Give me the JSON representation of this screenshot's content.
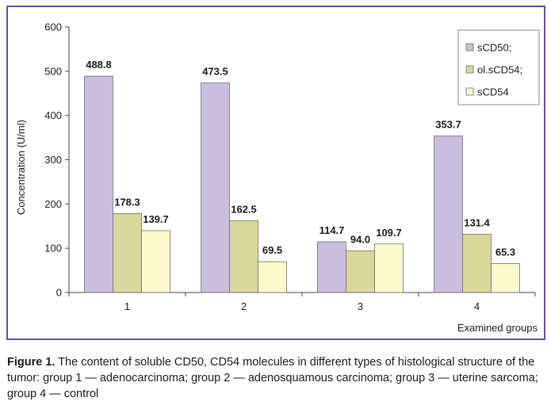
{
  "chart_data": {
    "type": "bar",
    "categories": [
      "1",
      "2",
      "3",
      "4"
    ],
    "series": [
      {
        "name": "sCD50;",
        "values": [
          488.8,
          473.5,
          114.7,
          353.7
        ],
        "color": "#c9bedd"
      },
      {
        "name": "ol.sCD54;",
        "values": [
          178.3,
          162.5,
          94.0,
          131.4
        ],
        "color": "#d9d79a"
      },
      {
        "name": "sCD54",
        "values": [
          139.7,
          69.5,
          109.7,
          65.3
        ],
        "color": "#fdf9cf"
      }
    ],
    "value_labels": [
      [
        "488.8",
        "473.5",
        "114.7",
        "353.7"
      ],
      [
        "178.3",
        "162.5",
        "94.0",
        "131.4"
      ],
      [
        "139.7",
        "69.5",
        "109.7",
        "65.3"
      ]
    ],
    "yticks": [
      "0",
      "100",
      "200",
      "300",
      "400",
      "500",
      "600"
    ],
    "ylim": [
      0,
      600
    ],
    "xlabel": "Examined groups",
    "ylabel": "Concentration (U/ml)",
    "grid": false,
    "legend_position": "top-right",
    "frame_color": "#6a4a9a"
  },
  "caption": {
    "label": "Figure 1.",
    "text": " The content of soluble CD50, CD54 molecules in different types of histological structure of the tumor: group 1 — adenocarcinoma; group 2 — adenosquamous carcinoma; group 3 — uterine sarcoma; group 4 — control"
  }
}
